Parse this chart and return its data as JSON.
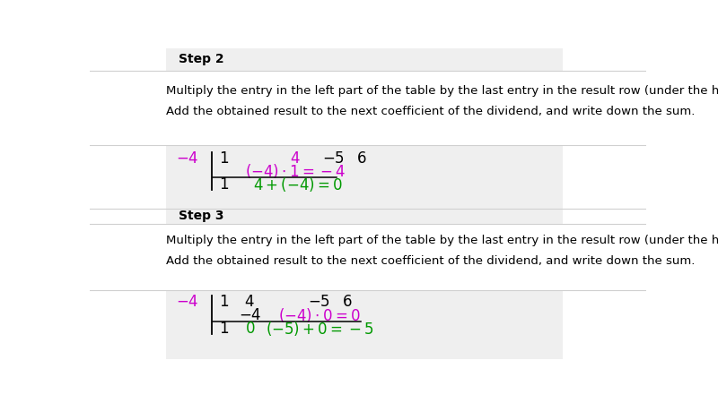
{
  "bg_color": "#ffffff",
  "panel_bg": "#efefef",
  "sep_color": "#d0d0d0",
  "text_color": "#000000",
  "magenta": "#cc00cc",
  "green": "#009900",
  "step2_label": "Step 2",
  "step3_label": "Step 3",
  "desc1": "Multiply the entry in the left part of the table by the last entry in the result row (under the horizontal line).",
  "desc2": "Add the obtained result to the next coefficient of the dividend, and write down the sum."
}
